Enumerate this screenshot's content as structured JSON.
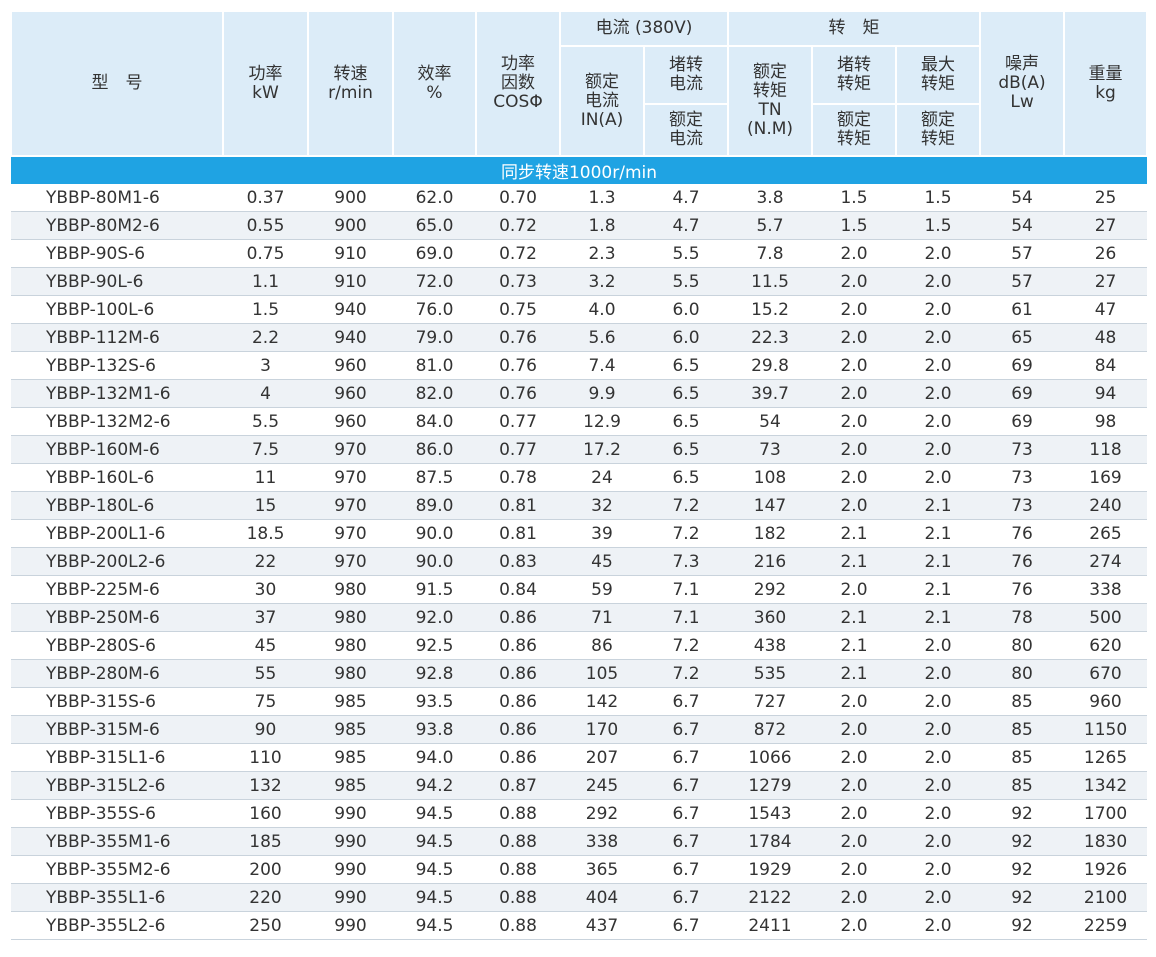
{
  "table": {
    "header": {
      "model": [
        "型　号"
      ],
      "power": [
        "功率",
        "kW"
      ],
      "speed": [
        "转速",
        "r/min"
      ],
      "efficiency": [
        "效率",
        "%"
      ],
      "power_factor": [
        "功率",
        "因数",
        "COSΦ"
      ],
      "current_group": "电流 (380V)",
      "rated_current": [
        "额定",
        "电流",
        "IN(A)"
      ],
      "locked_current": [
        "堵转",
        "电流"
      ],
      "locked_current_ratio": [
        "额定",
        "电流"
      ],
      "torque_group": "转　矩",
      "rated_torque": [
        "额定",
        "转矩",
        "TN",
        "(N.M)"
      ],
      "locked_torque": [
        "堵转",
        "转矩"
      ],
      "locked_torque_ratio": [
        "额定",
        "转矩"
      ],
      "max_torque": [
        "最大",
        "转矩"
      ],
      "max_torque_ratio": [
        "额定",
        "转矩"
      ],
      "noise": [
        "噪声",
        "dB(A)",
        "Lw"
      ],
      "weight": [
        "重量",
        "kg"
      ]
    },
    "section": "同步转速1000r/min",
    "rows": [
      [
        "YBBP-80M1-6",
        "0.37",
        "900",
        "62.0",
        "0.70",
        "1.3",
        "4.7",
        "3.8",
        "1.5",
        "1.5",
        "54",
        "25"
      ],
      [
        "YBBP-80M2-6",
        "0.55",
        "900",
        "65.0",
        "0.72",
        "1.8",
        "4.7",
        "5.7",
        "1.5",
        "1.5",
        "54",
        "27"
      ],
      [
        "YBBP-90S-6",
        "0.75",
        "910",
        "69.0",
        "0.72",
        "2.3",
        "5.5",
        "7.8",
        "2.0",
        "2.0",
        "57",
        "26"
      ],
      [
        "YBBP-90L-6",
        "1.1",
        "910",
        "72.0",
        "0.73",
        "3.2",
        "5.5",
        "11.5",
        "2.0",
        "2.0",
        "57",
        "27"
      ],
      [
        "YBBP-100L-6",
        "1.5",
        "940",
        "76.0",
        "0.75",
        "4.0",
        "6.0",
        "15.2",
        "2.0",
        "2.0",
        "61",
        "47"
      ],
      [
        "YBBP-112M-6",
        "2.2",
        "940",
        "79.0",
        "0.76",
        "5.6",
        "6.0",
        "22.3",
        "2.0",
        "2.0",
        "65",
        "48"
      ],
      [
        "YBBP-132S-6",
        "3",
        "960",
        "81.0",
        "0.76",
        "7.4",
        "6.5",
        "29.8",
        "2.0",
        "2.0",
        "69",
        "84"
      ],
      [
        "YBBP-132M1-6",
        "4",
        "960",
        "82.0",
        "0.76",
        "9.9",
        "6.5",
        "39.7",
        "2.0",
        "2.0",
        "69",
        "94"
      ],
      [
        "YBBP-132M2-6",
        "5.5",
        "960",
        "84.0",
        "0.77",
        "12.9",
        "6.5",
        "54",
        "2.0",
        "2.0",
        "69",
        "98"
      ],
      [
        "YBBP-160M-6",
        "7.5",
        "970",
        "86.0",
        "0.77",
        "17.2",
        "6.5",
        "73",
        "2.0",
        "2.0",
        "73",
        "118"
      ],
      [
        "YBBP-160L-6",
        "11",
        "970",
        "87.5",
        "0.78",
        "24",
        "6.5",
        "108",
        "2.0",
        "2.0",
        "73",
        "169"
      ],
      [
        "YBBP-180L-6",
        "15",
        "970",
        "89.0",
        "0.81",
        "32",
        "7.2",
        "147",
        "2.0",
        "2.1",
        "73",
        "240"
      ],
      [
        "YBBP-200L1-6",
        "18.5",
        "970",
        "90.0",
        "0.81",
        "39",
        "7.2",
        "182",
        "2.1",
        "2.1",
        "76",
        "265"
      ],
      [
        "YBBP-200L2-6",
        "22",
        "970",
        "90.0",
        "0.83",
        "45",
        "7.3",
        "216",
        "2.1",
        "2.1",
        "76",
        "274"
      ],
      [
        "YBBP-225M-6",
        "30",
        "980",
        "91.5",
        "0.84",
        "59",
        "7.1",
        "292",
        "2.0",
        "2.1",
        "76",
        "338"
      ],
      [
        "YBBP-250M-6",
        "37",
        "980",
        "92.0",
        "0.86",
        "71",
        "7.1",
        "360",
        "2.1",
        "2.1",
        "78",
        "500"
      ],
      [
        "YBBP-280S-6",
        "45",
        "980",
        "92.5",
        "0.86",
        "86",
        "7.2",
        "438",
        "2.1",
        "2.0",
        "80",
        "620"
      ],
      [
        "YBBP-280M-6",
        "55",
        "980",
        "92.8",
        "0.86",
        "105",
        "7.2",
        "535",
        "2.1",
        "2.0",
        "80",
        "670"
      ],
      [
        "YBBP-315S-6",
        "75",
        "985",
        "93.5",
        "0.86",
        "142",
        "6.7",
        "727",
        "2.0",
        "2.0",
        "85",
        "960"
      ],
      [
        "YBBP-315M-6",
        "90",
        "985",
        "93.8",
        "0.86",
        "170",
        "6.7",
        "872",
        "2.0",
        "2.0",
        "85",
        "1150"
      ],
      [
        "YBBP-315L1-6",
        "110",
        "985",
        "94.0",
        "0.86",
        "207",
        "6.7",
        "1066",
        "2.0",
        "2.0",
        "85",
        "1265"
      ],
      [
        "YBBP-315L2-6",
        "132",
        "985",
        "94.2",
        "0.87",
        "245",
        "6.7",
        "1279",
        "2.0",
        "2.0",
        "85",
        "1342"
      ],
      [
        "YBBP-355S-6",
        "160",
        "990",
        "94.5",
        "0.88",
        "292",
        "6.7",
        "1543",
        "2.0",
        "2.0",
        "92",
        "1700"
      ],
      [
        "YBBP-355M1-6",
        "185",
        "990",
        "94.5",
        "0.88",
        "338",
        "6.7",
        "1784",
        "2.0",
        "2.0",
        "92",
        "1830"
      ],
      [
        "YBBP-355M2-6",
        "200",
        "990",
        "94.5",
        "0.88",
        "365",
        "6.7",
        "1929",
        "2.0",
        "2.0",
        "92",
        "1926"
      ],
      [
        "YBBP-355L1-6",
        "220",
        "990",
        "94.5",
        "0.88",
        "404",
        "6.7",
        "2122",
        "2.0",
        "2.0",
        "92",
        "2100"
      ],
      [
        "YBBP-355L2-6",
        "250",
        "990",
        "94.5",
        "0.88",
        "437",
        "6.7",
        "2411",
        "2.0",
        "2.0",
        "92",
        "2259"
      ]
    ]
  }
}
